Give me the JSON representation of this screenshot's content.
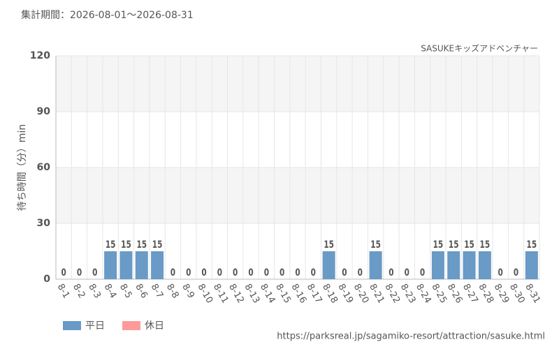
{
  "chart_data": {
    "type": "bar",
    "title": "集計期間：2026-08-01～2026-08-31",
    "subtitle": "SASUKEキッズアドベンチャー",
    "y_label": "待ち時間（分）min",
    "source": "https://parksreal.jp/sagamiko-resort/attraction/sasuke.html",
    "categories": [
      "8-1",
      "8-2",
      "8-3",
      "8-4",
      "8-5",
      "8-6",
      "8-7",
      "8-8",
      "8-9",
      "8-10",
      "8-11",
      "8-12",
      "8-13",
      "8-14",
      "8-15",
      "8-16",
      "8-17",
      "8-18",
      "8-19",
      "8-20",
      "8-21",
      "8-22",
      "8-23",
      "8-24",
      "8-25",
      "8-26",
      "8-27",
      "8-28",
      "8-29",
      "8-30",
      "8-31"
    ],
    "series": [
      {
        "name": "平日",
        "color": "#6a9ac6",
        "label_color": "#5a8ab8",
        "values": [
          null,
          null,
          0,
          15,
          15,
          15,
          15,
          null,
          null,
          0,
          null,
          0,
          0,
          0,
          null,
          null,
          0,
          15,
          0,
          0,
          15,
          null,
          null,
          0,
          15,
          15,
          15,
          15,
          null,
          null,
          15
        ]
      },
      {
        "name": "休日",
        "color": "#ff9a9a",
        "label_color": "#f08c8c",
        "values": [
          0,
          0,
          null,
          null,
          null,
          null,
          null,
          0,
          0,
          null,
          0,
          null,
          null,
          null,
          0,
          0,
          null,
          null,
          null,
          null,
          null,
          0,
          0,
          null,
          null,
          null,
          null,
          null,
          0,
          0,
          null
        ]
      }
    ],
    "ylim": [
      0,
      120
    ],
    "yticks": [
      0,
      30,
      60,
      90,
      120
    ],
    "grid": true,
    "legend": "bottom-left"
  }
}
